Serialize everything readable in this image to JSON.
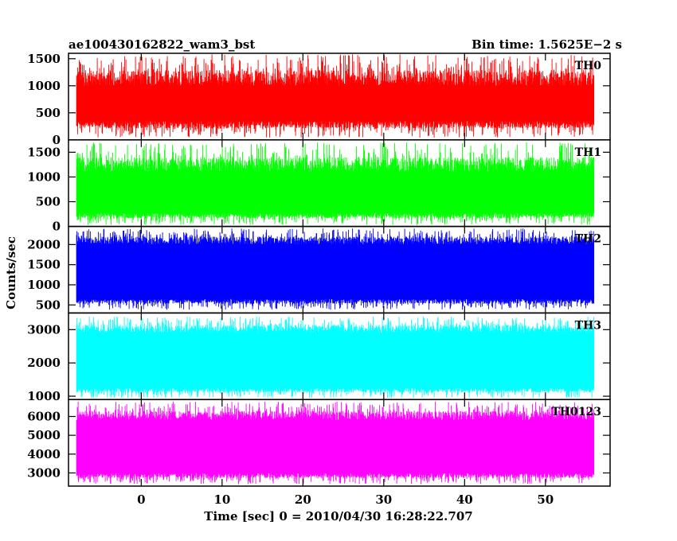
{
  "chart_data": {
    "type": "line",
    "title_left": "ae100430162822_wam3_bst",
    "title_right": "Bin time: 1.5625E−2 s",
    "xlabel": "Time [sec] 0 = 2010/04/30 16:28:22.707",
    "ylabel": "Counts/sec",
    "xlim": [
      -9,
      58
    ],
    "xticks": [
      0,
      10,
      20,
      30,
      40,
      50
    ],
    "xtick_labels": [
      "0",
      "10",
      "20",
      "30",
      "40",
      "50"
    ],
    "data_range": [
      -8,
      56
    ],
    "grid": false,
    "panels": [
      {
        "name": "TH0",
        "color": "#ff0000",
        "ylim": [
          0,
          1600
        ],
        "yticks": [
          0,
          500,
          1000,
          1500
        ],
        "ytick_labels": [
          "0",
          "500",
          "1000",
          "1500"
        ],
        "band": [
          350,
          1000
        ],
        "peak_max": 1580,
        "trough_min": 40
      },
      {
        "name": "TH1",
        "color": "#00ff00",
        "ylim": [
          0,
          1750
        ],
        "yticks": [
          0,
          500,
          1000,
          1500
        ],
        "ytick_labels": [
          "0",
          "500",
          "1000",
          "1500"
        ],
        "band": [
          270,
          1100
        ],
        "peak_max": 1700,
        "trough_min": 30
      },
      {
        "name": "TH2",
        "color": "#0000ff",
        "ylim": [
          300,
          2450
        ],
        "yticks": [
          500,
          1000,
          1500,
          2000
        ],
        "ytick_labels": [
          "500",
          "1000",
          "1500",
          "2000"
        ],
        "band": [
          650,
          2000
        ],
        "peak_max": 2400,
        "trough_min": 380
      },
      {
        "name": "TH3",
        "color": "#00ffff",
        "ylim": [
          900,
          3500
        ],
        "yticks": [
          1000,
          2000,
          3000
        ],
        "ytick_labels": [
          "1000",
          "2000",
          "3000"
        ],
        "band": [
          1250,
          2900
        ],
        "peak_max": 3400,
        "trough_min": 950
      },
      {
        "name": "TH0123",
        "color": "#ff00ff",
        "ylim": [
          2300,
          6900
        ],
        "yticks": [
          3000,
          4000,
          5000,
          6000
        ],
        "ytick_labels": [
          "3000",
          "4000",
          "5000",
          "6000"
        ],
        "band": [
          3000,
          5800
        ],
        "peak_max": 6800,
        "trough_min": 2400
      }
    ]
  }
}
